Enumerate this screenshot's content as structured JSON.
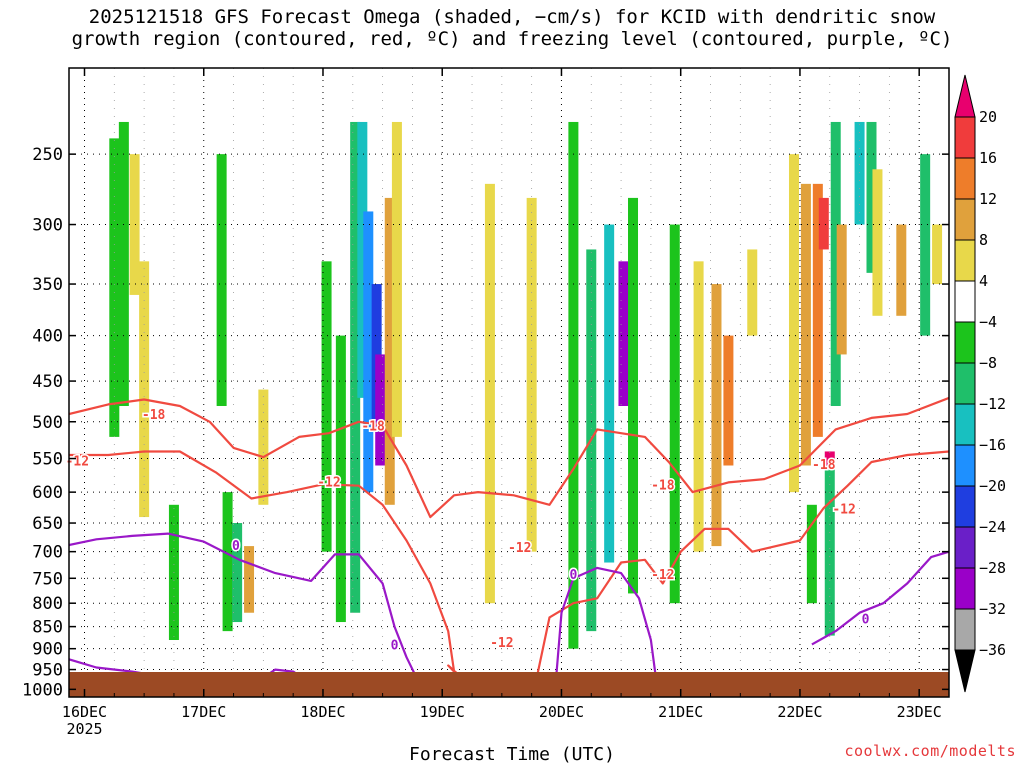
{
  "title": {
    "line1": "2025121518 GFS Forecast Omega (shaded, −cm/s) for KCID with dendritic snow",
    "line2": "growth region (contoured, red, ºC) and freezing level (contoured, purple, ºC)"
  },
  "credit": "coolwx.com/modelts",
  "chart_data": {
    "type": "heatmap",
    "title": "2025121518 GFS Forecast Omega (shaded, −cm/s) for KCID with dendritic snow growth region (contoured, red, ºC) and freezing level (contoured, purple, ºC)",
    "xlabel": "Forecast Time (UTC)",
    "ylabel": "",
    "x_ticks": [
      "16DEC",
      "17DEC",
      "18DEC",
      "19DEC",
      "20DEC",
      "21DEC",
      "22DEC",
      "23DEC"
    ],
    "x_year": "2025",
    "xlim_days": [
      15.87,
      23.25
    ],
    "y_ticks": [
      250,
      300,
      350,
      400,
      450,
      500,
      550,
      600,
      650,
      700,
      750,
      800,
      850,
      900,
      950,
      1000
    ],
    "ylim": [
      200,
      1020
    ],
    "y_scale": "log-pressure (inverted)",
    "grid": true,
    "colorbar": {
      "labels": [
        "20",
        "16",
        "12",
        "8",
        "4",
        "−4",
        "−8",
        "−12",
        "−16",
        "−20",
        "−24",
        "−28",
        "−32",
        "−36"
      ],
      "bins": [
        {
          "range": "> 20",
          "color": "#e8006e"
        },
        {
          "range": "16 to 20",
          "color": "#f03c3c"
        },
        {
          "range": "12 to 16",
          "color": "#ee7d2a"
        },
        {
          "range": "8 to 12",
          "color": "#e0a13c"
        },
        {
          "range": "4 to 8",
          "color": "#e8d84a"
        },
        {
          "range": "-4 to 4",
          "color": "#ffffff"
        },
        {
          "range": "-8 to -4",
          "color": "#1cc41c"
        },
        {
          "range": "-12 to -8",
          "color": "#1fbf6a"
        },
        {
          "range": "-16 to -12",
          "color": "#18c0c0"
        },
        {
          "range": "-20 to -16",
          "color": "#1e90ff"
        },
        {
          "range": "-24 to -20",
          "color": "#1f3ee0"
        },
        {
          "range": "-28 to -24",
          "color": "#6a1fc8"
        },
        {
          "range": "-32 to -28",
          "color": "#9a00c8"
        },
        {
          "range": "-36 to -32",
          "color": "#a8a8a8"
        },
        {
          "range": "< -36",
          "color": "#000000"
        }
      ]
    },
    "contour_labels": [
      {
        "text": "-18",
        "day": 16.58,
        "p": 490,
        "color": "#f04a40"
      },
      {
        "text": "-12",
        "day": 15.94,
        "p": 553,
        "color": "#f04a40"
      },
      {
        "text": "-18",
        "day": 18.42,
        "p": 505,
        "color": "#f04a40"
      },
      {
        "text": "-12",
        "day": 18.05,
        "p": 584,
        "color": "#f04a40"
      },
      {
        "text": "-12",
        "day": 19.65,
        "p": 692,
        "color": "#f04a40"
      },
      {
        "text": "-12",
        "day": 19.5,
        "p": 885,
        "color": "#f04a40"
      },
      {
        "text": "-18",
        "day": 20.85,
        "p": 588,
        "color": "#f04a40"
      },
      {
        "text": "-12",
        "day": 20.85,
        "p": 742,
        "color": "#f04a40"
      },
      {
        "text": "-12",
        "day": 22.37,
        "p": 626,
        "color": "#f04a40"
      },
      {
        "text": "-18",
        "day": 22.2,
        "p": 558,
        "color": "#f04a40"
      },
      {
        "text": "0",
        "day": 17.27,
        "p": 688,
        "color": "#9a18c8"
      },
      {
        "text": "0",
        "day": 18.6,
        "p": 890,
        "color": "#9a18c8"
      },
      {
        "text": "0",
        "day": 20.1,
        "p": 742,
        "color": "#9a18c8"
      },
      {
        "text": "0",
        "day": 22.55,
        "p": 832,
        "color": "#9a18c8"
      }
    ],
    "series": [
      {
        "name": "-18ºC",
        "color": "#f04a40",
        "x": [
          15.87,
          16.2,
          16.5,
          16.8,
          17.05,
          17.25,
          17.5,
          17.8,
          18.05,
          18.3,
          18.5,
          18.7,
          18.9,
          19.1,
          19.3,
          19.6,
          19.9,
          20.1,
          20.3,
          20.5,
          20.7,
          20.9,
          21.1,
          21.4,
          21.7,
          22.0,
          22.3,
          22.6,
          22.9,
          23.25
        ],
        "y": [
          490,
          478,
          472,
          480,
          500,
          535,
          548,
          520,
          515,
          500,
          505,
          560,
          640,
          605,
          600,
          605,
          620,
          565,
          510,
          515,
          520,
          555,
          600,
          585,
          580,
          560,
          510,
          495,
          490,
          470
        ]
      },
      {
        "name": "-12ºC",
        "color": "#f04a40",
        "x": [
          15.87,
          16.2,
          16.5,
          16.8,
          17.1,
          17.4,
          17.7,
          18.0,
          18.3,
          18.5,
          18.7,
          18.9,
          19.05,
          19.1,
          19.05,
          19.2,
          19.5,
          19.8,
          19.9,
          20.1,
          20.3,
          20.5,
          20.7,
          20.85,
          21.0,
          21.2,
          21.4,
          21.6,
          21.8,
          22.0,
          22.2,
          22.4,
          22.6,
          22.9,
          23.25
        ],
        "y": [
          545,
          545,
          540,
          540,
          570,
          610,
          600,
          588,
          590,
          620,
          680,
          760,
          860,
          955,
          940,
          980,
          975,
          960,
          830,
          800,
          790,
          720,
          715,
          760,
          700,
          660,
          660,
          700,
          690,
          680,
          625,
          590,
          555,
          545,
          540
        ]
      },
      {
        "name": "0ºC",
        "color": "#9a18c8",
        "x": [
          15.87,
          16.1,
          16.4,
          16.7,
          17.0,
          17.3,
          17.6,
          17.9,
          18.1,
          18.3,
          18.5,
          18.6,
          18.7,
          18.8
        ],
        "y": [
          688,
          678,
          672,
          668,
          682,
          715,
          740,
          755,
          705,
          705,
          760,
          850,
          920,
          980
        ]
      },
      {
        "name": "0ºC",
        "color": "#9a18c8",
        "x": [
          15.87,
          16.1,
          16.4,
          16.6,
          16.7
        ],
        "y": [
          925,
          945,
          955,
          965,
          990
        ]
      },
      {
        "name": "0ºC",
        "color": "#9a18c8",
        "x": [
          17.4,
          17.6,
          17.75,
          17.9
        ],
        "y": [
          990,
          950,
          955,
          985
        ]
      },
      {
        "name": "0ºC",
        "color": "#9a18c8",
        "x": [
          19.95,
          20.0,
          20.1,
          20.3,
          20.5,
          20.65,
          20.75,
          20.8
        ],
        "y": [
          990,
          820,
          750,
          730,
          740,
          790,
          880,
          990
        ]
      },
      {
        "name": "0ºC",
        "color": "#9a18c8",
        "x": [
          22.1,
          22.3,
          22.5,
          22.7,
          22.9,
          23.1,
          23.25
        ],
        "y": [
          890,
          860,
          820,
          800,
          760,
          710,
          700
        ]
      }
    ],
    "shading_cells": [
      {
        "day": 16.25,
        "p0": 240,
        "p1": 520,
        "v": -6
      },
      {
        "day": 16.33,
        "p0": 230,
        "p1": 480,
        "v": -6
      },
      {
        "day": 16.42,
        "p0": 250,
        "p1": 360,
        "v": 5
      },
      {
        "day": 16.5,
        "p0": 330,
        "p1": 640,
        "v": 5
      },
      {
        "day": 16.75,
        "p0": 620,
        "p1": 880,
        "v": -6
      },
      {
        "day": 17.15,
        "p0": 250,
        "p1": 480,
        "v": -6
      },
      {
        "day": 17.2,
        "p0": 600,
        "p1": 860,
        "v": -6
      },
      {
        "day": 17.28,
        "p0": 650,
        "p1": 840,
        "v": -9
      },
      {
        "day": 17.38,
        "p0": 690,
        "p1": 820,
        "v": 9
      },
      {
        "day": 17.5,
        "p0": 460,
        "p1": 620,
        "v": 5
      },
      {
        "day": 18.03,
        "p0": 330,
        "p1": 700,
        "v": -6
      },
      {
        "day": 18.15,
        "p0": 400,
        "p1": 840,
        "v": -6
      },
      {
        "day": 18.27,
        "p0": 230,
        "p1": 820,
        "v": -9
      },
      {
        "day": 18.33,
        "p0": 230,
        "p1": 470,
        "v": -13
      },
      {
        "day": 18.38,
        "p0": 290,
        "p1": 600,
        "v": -18
      },
      {
        "day": 18.45,
        "p0": 350,
        "p1": 500,
        "v": -22
      },
      {
        "day": 18.48,
        "p0": 420,
        "p1": 560,
        "v": -30
      },
      {
        "day": 18.56,
        "p0": 280,
        "p1": 620,
        "v": 9
      },
      {
        "day": 18.62,
        "p0": 230,
        "p1": 520,
        "v": 5
      },
      {
        "day": 19.4,
        "p0": 270,
        "p1": 800,
        "v": 5
      },
      {
        "day": 19.75,
        "p0": 280,
        "p1": 700,
        "v": 5
      },
      {
        "day": 20.1,
        "p0": 230,
        "p1": 900,
        "v": -6
      },
      {
        "day": 20.25,
        "p0": 320,
        "p1": 860,
        "v": -9
      },
      {
        "day": 20.4,
        "p0": 300,
        "p1": 720,
        "v": -13
      },
      {
        "day": 20.52,
        "p0": 330,
        "p1": 480,
        "v": -30
      },
      {
        "day": 20.6,
        "p0": 280,
        "p1": 780,
        "v": -6
      },
      {
        "day": 20.95,
        "p0": 300,
        "p1": 800,
        "v": -6
      },
      {
        "day": 21.15,
        "p0": 330,
        "p1": 700,
        "v": 5
      },
      {
        "day": 21.3,
        "p0": 350,
        "p1": 690,
        "v": 9
      },
      {
        "day": 21.4,
        "p0": 400,
        "p1": 560,
        "v": 13
      },
      {
        "day": 21.6,
        "p0": 320,
        "p1": 400,
        "v": 5
      },
      {
        "day": 21.95,
        "p0": 250,
        "p1": 600,
        "v": 5
      },
      {
        "day": 22.05,
        "p0": 270,
        "p1": 560,
        "v": 9
      },
      {
        "day": 22.15,
        "p0": 270,
        "p1": 520,
        "v": 13
      },
      {
        "day": 22.2,
        "p0": 280,
        "p1": 320,
        "v": 17
      },
      {
        "day": 22.25,
        "p0": 540,
        "p1": 560,
        "v": 22
      },
      {
        "day": 22.3,
        "p0": 230,
        "p1": 480,
        "v": -9
      },
      {
        "day": 22.35,
        "p0": 300,
        "p1": 420,
        "v": 9
      },
      {
        "day": 22.5,
        "p0": 230,
        "p1": 300,
        "v": -13
      },
      {
        "day": 22.6,
        "p0": 230,
        "p1": 340,
        "v": -9
      },
      {
        "day": 22.65,
        "p0": 260,
        "p1": 380,
        "v": 5
      },
      {
        "day": 22.85,
        "p0": 300,
        "p1": 380,
        "v": 9
      },
      {
        "day": 23.05,
        "p0": 250,
        "p1": 400,
        "v": -9
      },
      {
        "day": 23.15,
        "p0": 300,
        "p1": 350,
        "v": 5
      },
      {
        "day": 22.25,
        "p0": 560,
        "p1": 870,
        "v": -9
      },
      {
        "day": 22.1,
        "p0": 620,
        "p1": 800,
        "v": -6
      }
    ]
  }
}
